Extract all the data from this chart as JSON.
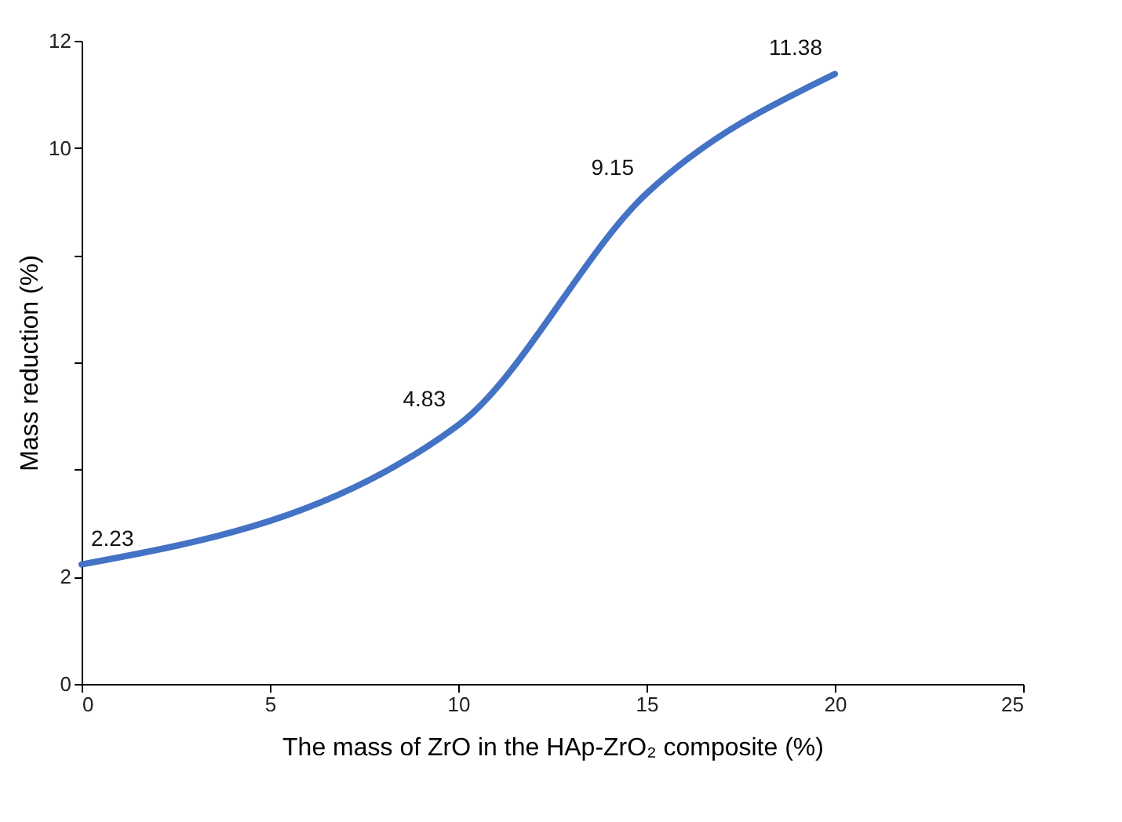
{
  "chart_data": {
    "type": "line",
    "xlabel": "The mass of ZrO in the HAp-ZrO₂ composite (%)",
    "ylabel": "Mass reduction (%)",
    "x": [
      0,
      10,
      15,
      20
    ],
    "series": [
      {
        "color": "#4472c4",
        "values": [
          2.23,
          4.83,
          9.15,
          11.38
        ]
      }
    ],
    "xlim": [
      0,
      25
    ],
    "xticks": [
      0,
      5,
      10,
      15,
      20,
      25
    ],
    "ylim": [
      0,
      12
    ],
    "yticks": [
      0,
      2,
      {
        "value": 4,
        "label": null
      },
      {
        "value": 6,
        "label": null
      },
      {
        "value": 8,
        "label": null
      },
      10,
      12
    ],
    "data_labels": true,
    "marker": "none",
    "line_style": "solid",
    "grid": false
  }
}
